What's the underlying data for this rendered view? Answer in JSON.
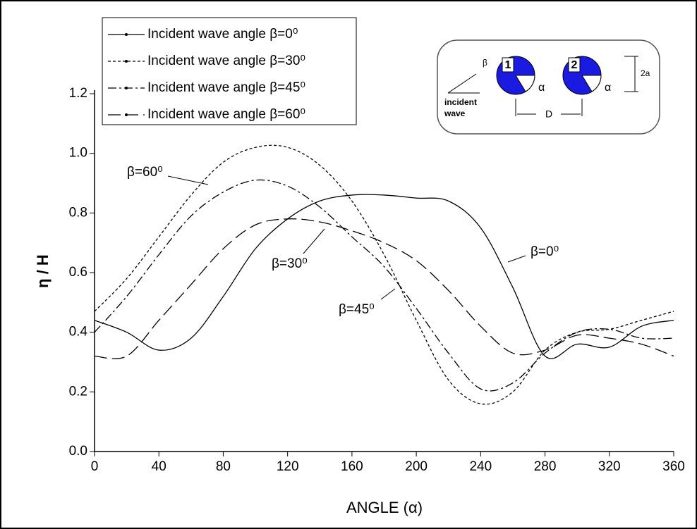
{
  "chart_data": {
    "type": "line",
    "x_label": "ANGLE (α)",
    "y_label": "η / H",
    "x": [
      0,
      20,
      40,
      60,
      80,
      100,
      120,
      140,
      160,
      180,
      200,
      220,
      240,
      260,
      280,
      300,
      320,
      340,
      360
    ],
    "series": [
      {
        "name": "Incident wave angle β=0⁰",
        "color": "#000000",
        "line_style": "solid",
        "values": [
          0.44,
          0.4,
          0.34,
          0.38,
          0.52,
          0.68,
          0.78,
          0.84,
          0.86,
          0.86,
          0.85,
          0.84,
          0.75,
          0.55,
          0.32,
          0.36,
          0.35,
          0.42,
          0.44
        ]
      },
      {
        "name": "Incident wave angle β=30⁰",
        "color": "#000000",
        "line_style": "short-dash",
        "values": [
          0.47,
          0.58,
          0.72,
          0.86,
          0.97,
          1.02,
          1.02,
          0.96,
          0.84,
          0.66,
          0.44,
          0.24,
          0.16,
          0.2,
          0.34,
          0.4,
          0.41,
          0.44,
          0.47
        ]
      },
      {
        "name": "Incident wave angle β=45⁰",
        "color": "#000000",
        "line_style": "dash-dot",
        "values": [
          0.4,
          0.52,
          0.66,
          0.79,
          0.87,
          0.91,
          0.89,
          0.82,
          0.72,
          0.62,
          0.48,
          0.33,
          0.21,
          0.23,
          0.33,
          0.4,
          0.41,
          0.38,
          0.38
        ]
      },
      {
        "name": "Incident wave angle β=60⁰",
        "color": "#000000",
        "line_style": "long-dash",
        "values": [
          0.32,
          0.32,
          0.44,
          0.56,
          0.68,
          0.76,
          0.78,
          0.77,
          0.74,
          0.7,
          0.64,
          0.54,
          0.42,
          0.33,
          0.34,
          0.39,
          0.38,
          0.36,
          0.32
        ]
      }
    ],
    "xlim": [
      0,
      360
    ],
    "xticks": [
      0,
      40,
      80,
      120,
      160,
      200,
      240,
      280,
      320,
      360
    ],
    "ylim": [
      0,
      1.2
    ],
    "yticks": [
      {
        "value": 0,
        "label": "0.0"
      },
      0.2,
      0.4,
      0.6,
      0.8,
      {
        "value": 1,
        "label": "1.0"
      },
      1.2
    ],
    "legend": "upper left",
    "annotations": [
      "β=60⁰",
      "β=30⁰",
      "β=45⁰",
      "β=0⁰"
    ],
    "inset": {
      "beta": "β",
      "cyl1": "1",
      "cyl2": "2",
      "alpha": "α",
      "incident": "incident",
      "wave": "wave",
      "spacing": "D",
      "diameter": "2a"
    }
  }
}
